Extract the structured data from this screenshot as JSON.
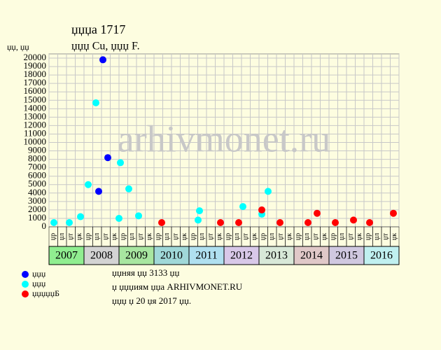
{
  "chart_data": {
    "type": "scatter",
    "title": "џџџа 1717",
    "subtitle": "џџџ Cu, џџџ F.",
    "y_label": "џџ, џџ",
    "watermark": "arhivmonet.ru",
    "xlim": [
      2007,
      2017
    ],
    "ylim": [
      0,
      20500
    ],
    "yticks": [
      0,
      1000,
      2000,
      3000,
      4000,
      5000,
      6000,
      7000,
      8000,
      9000,
      10000,
      11000,
      12000,
      13000,
      14000,
      15000,
      16000,
      17000,
      18000,
      19000,
      20000
    ],
    "xticks": [
      2007,
      2007.25,
      2007.5,
      2007.75,
      2008,
      2008.25,
      2008.5,
      2008.75,
      2009,
      2009.25,
      2009.5,
      2009.75,
      2010,
      2010.25,
      2010.5,
      2010.75,
      2011,
      2011.25,
      2011.5,
      2011.75,
      2012,
      2012.25,
      2012.5,
      2012.75,
      2013,
      2013.25,
      2013.5,
      2013.75,
      2014,
      2014.25,
      2014.5,
      2014.75,
      2015,
      2015.25,
      2015.5,
      2015.75,
      2016,
      2016.25,
      2016.5,
      2016.75,
      2017
    ],
    "grid": true,
    "years": [
      2007,
      2008,
      2009,
      2010,
      2011,
      2012,
      2013,
      2014,
      2015,
      2016
    ],
    "year_colors": [
      "#90ee90",
      "#d3d3d3",
      "#a8e6a0",
      "#a0d8d8",
      "#b0e0f0",
      "#d8c8e8",
      "#d8e8d8",
      "#e0c8c8",
      "#d0c8e0",
      "#c0f0f0"
    ],
    "sub_labels": [
      "џр",
      "џл",
      "џт",
      "џк"
    ],
    "series": [
      {
        "name": "џџџ",
        "color": "#0000ff",
        "x": [
          2008.42,
          2008.54,
          2008.68
        ],
        "values": [
          4200,
          19800,
          8200
        ]
      },
      {
        "name": "џџџ",
        "color": "#00ffff",
        "x": [
          2007.14,
          2007.58,
          2007.9,
          2008.12,
          2008.34,
          2009.0,
          2009.04,
          2009.28,
          2009.56,
          2011.26,
          2011.3,
          2012.54,
          2013.08,
          2013.26
        ],
        "values": [
          500,
          500,
          1200,
          5000,
          14700,
          1000,
          7600,
          4500,
          1300,
          800,
          1900,
          2400,
          1500,
          4200
        ]
      },
      {
        "name": "џџџџџБ",
        "color": "#ff0000",
        "x": [
          2010.22,
          2011.9,
          2012.42,
          2013.08,
          2013.6,
          2014.4,
          2014.66,
          2015.18,
          2015.7,
          2016.16,
          2016.84
        ],
        "values": [
          500,
          500,
          500,
          2000,
          500,
          500,
          1600,
          500,
          800,
          500,
          1600
        ]
      }
    ],
    "notes": [
      "џџняя џџ 3133 џџ",
      "џ џџџиям џџа ARHIVMONET.RU",
      "џџџ џ 20 џя 2017 џџ."
    ]
  }
}
